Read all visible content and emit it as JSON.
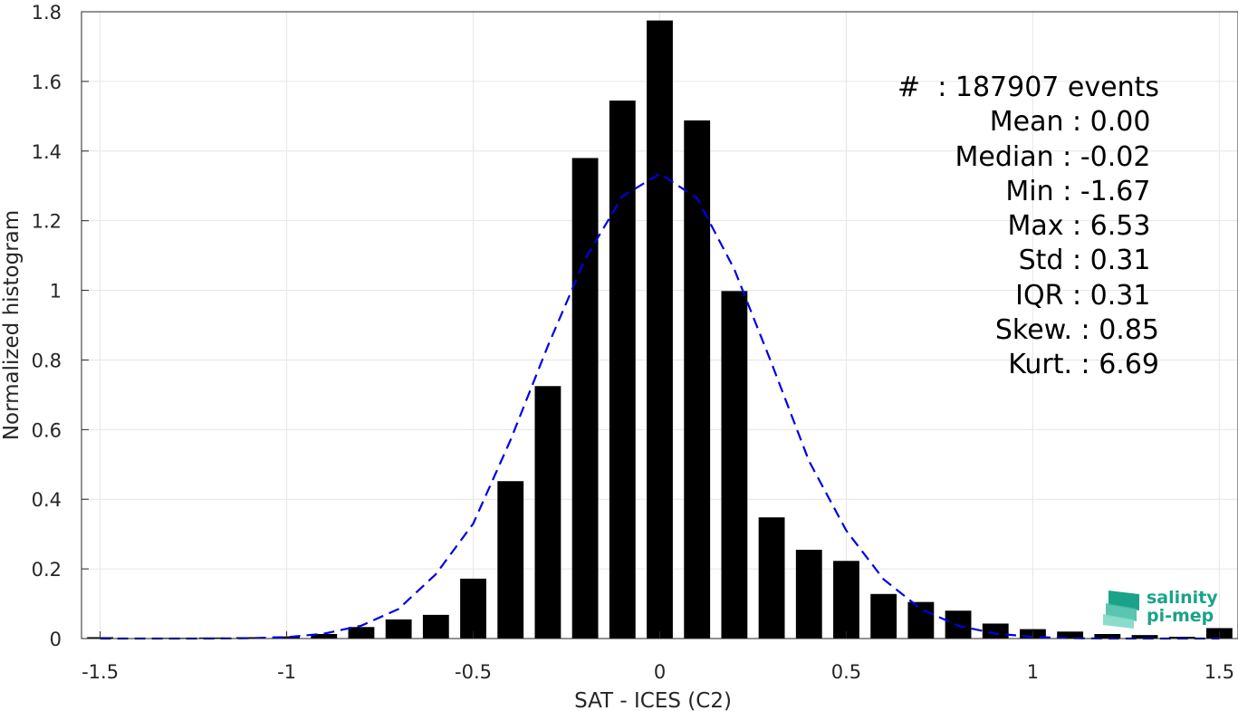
{
  "chart_data": {
    "type": "bar",
    "xlabel": "SAT - ICES (C2)",
    "ylabel": "Normalized histogram",
    "xlim": [
      -1.55,
      1.55
    ],
    "ylim": [
      0,
      1.8
    ],
    "xticks": [
      -1.5,
      -1,
      -0.5,
      0,
      0.5,
      1,
      1.5
    ],
    "xtick_labels": [
      "-1.5",
      "-1",
      "-0.5",
      "0",
      "0.5",
      "1",
      "1.5"
    ],
    "yticks": [
      0,
      0.2,
      0.4,
      0.6,
      0.8,
      1,
      1.2,
      1.4,
      1.6,
      1.8
    ],
    "ytick_labels": [
      "0",
      "0.2",
      "0.4",
      "0.6",
      "0.8",
      "1",
      "1.2",
      "1.4",
      "1.6",
      "1.8"
    ],
    "grid": true,
    "bar_color": "#000000",
    "bars": {
      "x": [
        -1.5,
        -1.4,
        -1.3,
        -1.2,
        -1.1,
        -1.0,
        -0.9,
        -0.8,
        -0.7,
        -0.6,
        -0.5,
        -0.4,
        -0.3,
        -0.2,
        -0.1,
        0.0,
        0.1,
        0.2,
        0.3,
        0.4,
        0.5,
        0.6,
        0.7,
        0.8,
        0.9,
        1.0,
        1.1,
        1.2,
        1.3,
        1.4,
        1.5
      ],
      "values": [
        0.004,
        0.0,
        0.002,
        0.003,
        0.004,
        0.006,
        0.013,
        0.033,
        0.055,
        0.068,
        0.172,
        0.452,
        0.725,
        1.38,
        1.545,
        1.775,
        1.488,
        0.998,
        0.348,
        0.255,
        0.223,
        0.128,
        0.105,
        0.08,
        0.043,
        0.027,
        0.02,
        0.013,
        0.01,
        0.005,
        0.03
      ]
    },
    "fit_curve": {
      "style": "dashed",
      "color": "#0000e6",
      "x": [
        -1.5,
        -1.4,
        -1.3,
        -1.2,
        -1.1,
        -1.0,
        -0.9,
        -0.8,
        -0.7,
        -0.6,
        -0.5,
        -0.4,
        -0.3,
        -0.2,
        -0.1,
        0.0,
        0.1,
        0.2,
        0.3,
        0.4,
        0.5,
        0.6,
        0.7,
        0.8,
        0.9,
        1.0,
        1.1,
        1.2,
        1.3,
        1.4,
        1.5
      ],
      "values": [
        0.0,
        0.0,
        0.0,
        0.0,
        0.001,
        0.004,
        0.014,
        0.037,
        0.085,
        0.185,
        0.33,
        0.57,
        0.84,
        1.09,
        1.27,
        1.335,
        1.265,
        1.06,
        0.79,
        0.51,
        0.31,
        0.17,
        0.085,
        0.037,
        0.014,
        0.005,
        0.001,
        0.0,
        0.0,
        0.0,
        0.0
      ]
    }
  },
  "stats": [
    "#  : 187907 events",
    "Mean : 0.00 ",
    "Median : -0.02 ",
    "Min : -1.67 ",
    "Max : 6.53 ",
    "Std : 0.31 ",
    "IQR : 0.31 ",
    "Skew. : 0.85",
    "Kurt. : 6.69"
  ],
  "logo": {
    "line1": "salinity",
    "line2": "pi-mep",
    "color": "#1aa388"
  }
}
